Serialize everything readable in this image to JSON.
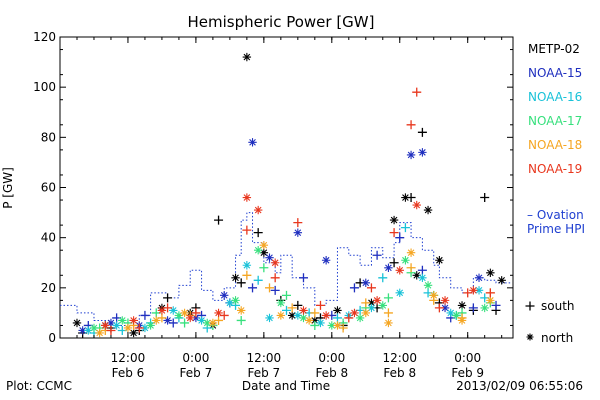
{
  "chart_data": {
    "type": "scatter",
    "title": "Hemispheric Power [GW]",
    "ylabel": "P [GW]",
    "xlabel": "Date and Time",
    "ylim": [
      0,
      120
    ],
    "xlim": [
      "2013-02-06T00:00",
      "2013-02-09T08:00"
    ],
    "yticks": [
      0,
      20,
      40,
      60,
      80,
      100,
      120
    ],
    "xticks": [
      {
        "at": "2013-02-06T12:00",
        "time": "12:00",
        "date": "Feb 6"
      },
      {
        "at": "2013-02-07T00:00",
        "time": "0:00",
        "date": "Feb 7"
      },
      {
        "at": "2013-02-07T12:00",
        "time": "12:00",
        "date": "Feb 7"
      },
      {
        "at": "2013-02-08T00:00",
        "time": "0:00",
        "date": "Feb 8"
      },
      {
        "at": "2013-02-08T12:00",
        "time": "12:00",
        "date": "Feb 8"
      },
      {
        "at": "2013-02-09T00:00",
        "time": "0:00",
        "date": "Feb 9"
      }
    ],
    "footer_left": "Plot: CCMC",
    "footer_right": "2013/02/09 06:55:06",
    "legend_placement": "right",
    "marker_legend": {
      "south": "south",
      "north": "north"
    },
    "series": [
      {
        "name": "METP-02",
        "color": "#000000",
        "south": [
          [
            "2013-02-06T04:00",
            2
          ],
          [
            "2013-02-06T09:00",
            4
          ],
          [
            "2013-02-06T14:00",
            3
          ],
          [
            "2013-02-06T19:00",
            16
          ],
          [
            "2013-02-07T00:00",
            12
          ],
          [
            "2013-02-07T04:00",
            47
          ],
          [
            "2013-02-07T08:00",
            22
          ],
          [
            "2013-02-07T11:00",
            42
          ],
          [
            "2013-02-07T15:00",
            15
          ],
          [
            "2013-02-07T18:00",
            13
          ],
          [
            "2013-02-07T22:00",
            8
          ],
          [
            "2013-02-08T02:00",
            5
          ],
          [
            "2013-02-08T05:00",
            22
          ],
          [
            "2013-02-08T08:00",
            12
          ],
          [
            "2013-02-08T11:00",
            30
          ],
          [
            "2013-02-08T14:00",
            56
          ],
          [
            "2013-02-08T16:00",
            82
          ],
          [
            "2013-02-08T19:00",
            14
          ],
          [
            "2013-02-09T01:00",
            11
          ],
          [
            "2013-02-09T03:00",
            56
          ],
          [
            "2013-02-09T05:00",
            11
          ]
        ],
        "north": [
          [
            "2013-02-06T03:00",
            6
          ],
          [
            "2013-02-06T08:00",
            5
          ],
          [
            "2013-02-06T13:00",
            2
          ],
          [
            "2013-02-06T18:00",
            12
          ],
          [
            "2013-02-06T23:00",
            10
          ],
          [
            "2013-02-07T03:00",
            5
          ],
          [
            "2013-02-07T07:00",
            24
          ],
          [
            "2013-02-07T09:00",
            112
          ],
          [
            "2013-02-07T12:00",
            34
          ],
          [
            "2013-02-07T17:00",
            9
          ],
          [
            "2013-02-07T21:00",
            7
          ],
          [
            "2013-02-08T01:00",
            11
          ],
          [
            "2013-02-08T07:00",
            14
          ],
          [
            "2013-02-08T11:00",
            47
          ],
          [
            "2013-02-08T13:00",
            56
          ],
          [
            "2013-02-08T15:00",
            25
          ],
          [
            "2013-02-08T17:00",
            51
          ],
          [
            "2013-02-08T19:00",
            31
          ],
          [
            "2013-02-08T23:00",
            13
          ],
          [
            "2013-02-09T04:00",
            26
          ],
          [
            "2013-02-09T06:00",
            23
          ]
        ]
      },
      {
        "name": "NOAA-15",
        "color": "#1f2fbf",
        "south": [
          [
            "2013-02-06T05:00",
            5
          ],
          [
            "2013-02-06T10:00",
            8
          ],
          [
            "2013-02-06T15:00",
            9
          ],
          [
            "2013-02-06T20:00",
            6
          ],
          [
            "2013-02-07T01:00",
            9
          ],
          [
            "2013-02-07T06:00",
            14
          ],
          [
            "2013-02-07T10:00",
            20
          ],
          [
            "2013-02-07T14:00",
            19
          ],
          [
            "2013-02-07T19:00",
            24
          ],
          [
            "2013-02-08T00:00",
            9
          ],
          [
            "2013-02-08T04:00",
            20
          ],
          [
            "2013-02-08T08:00",
            33
          ],
          [
            "2013-02-08T12:00",
            40
          ],
          [
            "2013-02-08T16:00",
            27
          ],
          [
            "2013-02-08T21:00",
            8
          ],
          [
            "2013-02-09T01:00",
            12
          ],
          [
            "2013-02-09T05:00",
            13
          ]
        ],
        "north": [
          [
            "2013-02-06T04:00",
            3
          ],
          [
            "2013-02-06T09:00",
            6
          ],
          [
            "2013-02-06T14:00",
            5
          ],
          [
            "2013-02-06T19:00",
            7
          ],
          [
            "2013-02-07T00:00",
            8
          ],
          [
            "2013-02-07T05:00",
            17
          ],
          [
            "2013-02-07T10:00",
            78
          ],
          [
            "2013-02-07T13:00",
            32
          ],
          [
            "2013-02-07T18:00",
            42
          ],
          [
            "2013-02-07T23:00",
            31
          ],
          [
            "2013-02-08T06:00",
            22
          ],
          [
            "2013-02-08T10:00",
            28
          ],
          [
            "2013-02-08T14:00",
            73
          ],
          [
            "2013-02-08T16:00",
            74
          ],
          [
            "2013-02-08T20:00",
            12
          ],
          [
            "2013-02-09T02:00",
            24
          ]
        ]
      },
      {
        "name": "NOAA-16",
        "color": "#19c2d8",
        "south": [
          [
            "2013-02-06T06:00",
            2
          ],
          [
            "2013-02-06T11:00",
            3
          ],
          [
            "2013-02-06T16:00",
            6
          ],
          [
            "2013-02-06T21:00",
            8
          ],
          [
            "2013-02-07T02:00",
            4
          ],
          [
            "2013-02-07T07:00",
            13
          ],
          [
            "2013-02-07T11:00",
            23
          ],
          [
            "2013-02-07T16:00",
            11
          ],
          [
            "2013-02-07T20:00",
            10
          ],
          [
            "2013-02-08T01:00",
            8
          ],
          [
            "2013-02-08T05:00",
            11
          ],
          [
            "2013-02-08T09:00",
            24
          ],
          [
            "2013-02-08T13:00",
            44
          ],
          [
            "2013-02-08T17:00",
            18
          ],
          [
            "2013-02-08T22:00",
            9
          ],
          [
            "2013-02-09T03:00",
            16
          ]
        ],
        "north": [
          [
            "2013-02-06T05:00",
            3
          ],
          [
            "2013-02-06T10:00",
            5
          ],
          [
            "2013-02-06T15:00",
            4
          ],
          [
            "2013-02-06T20:00",
            11
          ],
          [
            "2013-02-07T01:00",
            7
          ],
          [
            "2013-02-07T06:00",
            14
          ],
          [
            "2013-02-07T09:00",
            29
          ],
          [
            "2013-02-07T13:00",
            8
          ],
          [
            "2013-02-07T18:00",
            9
          ],
          [
            "2013-02-07T22:00",
            6
          ],
          [
            "2013-02-08T03:00",
            9
          ],
          [
            "2013-02-08T07:00",
            12
          ],
          [
            "2013-02-08T12:00",
            18
          ],
          [
            "2013-02-08T16:00",
            24
          ],
          [
            "2013-02-08T21:00",
            10
          ],
          [
            "2013-02-09T02:00",
            19
          ]
        ]
      },
      {
        "name": "NOAA-17",
        "color": "#37e07d",
        "south": [
          [
            "2013-02-06T07:00",
            4
          ],
          [
            "2013-02-06T12:00",
            6
          ],
          [
            "2013-02-06T17:00",
            10
          ],
          [
            "2013-02-06T22:00",
            6
          ],
          [
            "2013-02-07T03:00",
            5
          ],
          [
            "2013-02-07T08:00",
            7
          ],
          [
            "2013-02-07T12:00",
            28
          ],
          [
            "2013-02-07T16:00",
            17
          ],
          [
            "2013-02-07T21:00",
            5
          ],
          [
            "2013-02-08T02:00",
            6
          ],
          [
            "2013-02-08T06:00",
            12
          ],
          [
            "2013-02-08T10:00",
            16
          ],
          [
            "2013-02-08T14:00",
            26
          ],
          [
            "2013-02-08T18:00",
            17
          ],
          [
            "2013-02-08T23:00",
            10
          ],
          [
            "2013-02-09T04:00",
            14
          ]
        ],
        "north": [
          [
            "2013-02-06T06:00",
            4
          ],
          [
            "2013-02-06T11:00",
            7
          ],
          [
            "2013-02-06T16:00",
            5
          ],
          [
            "2013-02-06T21:00",
            9
          ],
          [
            "2013-02-07T02:00",
            6
          ],
          [
            "2013-02-07T07:00",
            15
          ],
          [
            "2013-02-07T11:00",
            35
          ],
          [
            "2013-02-07T15:00",
            14
          ],
          [
            "2013-02-07T19:00",
            8
          ],
          [
            "2013-02-08T00:00",
            5
          ],
          [
            "2013-02-08T05:00",
            8
          ],
          [
            "2013-02-08T09:00",
            13
          ],
          [
            "2013-02-08T13:00",
            31
          ],
          [
            "2013-02-08T17:00",
            21
          ],
          [
            "2013-02-08T22:00",
            9
          ],
          [
            "2013-02-09T03:00",
            12
          ]
        ]
      },
      {
        "name": "NOAA-18",
        "color": "#f5a623",
        "south": [
          [
            "2013-02-06T08:00",
            3
          ],
          [
            "2013-02-06T13:00",
            5
          ],
          [
            "2013-02-06T18:00",
            8
          ],
          [
            "2013-02-06T23:00",
            9
          ],
          [
            "2013-02-07T04:00",
            7
          ],
          [
            "2013-02-07T09:00",
            25
          ],
          [
            "2013-02-07T13:00",
            20
          ],
          [
            "2013-02-07T17:00",
            12
          ],
          [
            "2013-02-07T21:00",
            10
          ],
          [
            "2013-02-08T02:00",
            4
          ],
          [
            "2013-02-08T06:00",
            14
          ],
          [
            "2013-02-08T10:00",
            10
          ],
          [
            "2013-02-08T14:00",
            28
          ],
          [
            "2013-02-08T18:00",
            15
          ],
          [
            "2013-02-08T23:00",
            8
          ],
          [
            "2013-02-09T04:00",
            18
          ]
        ],
        "north": [
          [
            "2013-02-06T07:00",
            2
          ],
          [
            "2013-02-06T12:00",
            4
          ],
          [
            "2013-02-06T17:00",
            7
          ],
          [
            "2013-02-06T22:00",
            10
          ],
          [
            "2013-02-07T03:00",
            6
          ],
          [
            "2013-02-07T08:00",
            11
          ],
          [
            "2013-02-07T12:00",
            37
          ],
          [
            "2013-02-07T15:00",
            9
          ],
          [
            "2013-02-07T20:00",
            7
          ],
          [
            "2013-02-08T01:00",
            5
          ],
          [
            "2013-02-08T06:00",
            10
          ],
          [
            "2013-02-08T10:00",
            6
          ],
          [
            "2013-02-08T14:00",
            34
          ],
          [
            "2013-02-08T18:00",
            17
          ],
          [
            "2013-02-08T23:00",
            7
          ],
          [
            "2013-02-09T04:00",
            15
          ]
        ]
      },
      {
        "name": "NOAA-19",
        "color": "#e8371e",
        "south": [
          [
            "2013-02-06T09:00",
            3
          ],
          [
            "2013-02-06T14:00",
            4
          ],
          [
            "2013-02-06T19:00",
            12
          ],
          [
            "2013-02-07T00:00",
            10
          ],
          [
            "2013-02-07T05:00",
            9
          ],
          [
            "2013-02-07T09:00",
            43
          ],
          [
            "2013-02-07T14:00",
            24
          ],
          [
            "2013-02-07T18:00",
            46
          ],
          [
            "2013-02-07T22:00",
            13
          ],
          [
            "2013-02-08T03:00",
            8
          ],
          [
            "2013-02-08T07:00",
            20
          ],
          [
            "2013-02-08T11:00",
            42
          ],
          [
            "2013-02-08T14:00",
            85
          ],
          [
            "2013-02-08T15:00",
            98
          ],
          [
            "2013-02-08T19:00",
            12
          ],
          [
            "2013-02-09T00:00",
            18
          ],
          [
            "2013-02-09T04:00",
            18
          ]
        ],
        "north": [
          [
            "2013-02-06T08:00",
            5
          ],
          [
            "2013-02-06T13:00",
            7
          ],
          [
            "2013-02-06T18:00",
            11
          ],
          [
            "2013-02-06T23:00",
            8
          ],
          [
            "2013-02-07T04:00",
            10
          ],
          [
            "2013-02-07T09:00",
            56
          ],
          [
            "2013-02-07T11:00",
            51
          ],
          [
            "2013-02-07T14:00",
            30
          ],
          [
            "2013-02-07T19:00",
            11
          ],
          [
            "2013-02-07T23:00",
            9
          ],
          [
            "2013-02-08T04:00",
            10
          ],
          [
            "2013-02-08T08:00",
            15
          ],
          [
            "2013-02-08T12:00",
            27
          ],
          [
            "2013-02-08T15:00",
            53
          ],
          [
            "2013-02-08T20:00",
            15
          ],
          [
            "2013-02-09T01:00",
            19
          ]
        ]
      },
      {
        "name": "Ovation Prime HPI",
        "legend_lines": [
          "– Ovation",
          "Prime HPI"
        ],
        "type": "step",
        "color": "#1f3fd0",
        "points": [
          [
            "2013-02-06T00:00",
            13
          ],
          [
            "2013-02-06T03:00",
            10
          ],
          [
            "2013-02-06T06:00",
            7
          ],
          [
            "2013-02-06T09:00",
            5
          ],
          [
            "2013-02-06T12:00",
            7
          ],
          [
            "2013-02-06T14:00",
            9
          ],
          [
            "2013-02-06T16:00",
            18
          ],
          [
            "2013-02-06T19:00",
            16
          ],
          [
            "2013-02-06T21:00",
            21
          ],
          [
            "2013-02-06T23:00",
            27
          ],
          [
            "2013-02-07T01:00",
            19
          ],
          [
            "2013-02-07T03:00",
            15
          ],
          [
            "2013-02-07T05:00",
            20
          ],
          [
            "2013-02-07T07:00",
            33
          ],
          [
            "2013-02-07T08:00",
            47
          ],
          [
            "2013-02-07T09:00",
            50
          ],
          [
            "2013-02-07T10:00",
            38
          ],
          [
            "2013-02-07T12:00",
            30
          ],
          [
            "2013-02-07T14:00",
            26
          ],
          [
            "2013-02-07T15:00",
            33
          ],
          [
            "2013-02-07T17:00",
            24
          ],
          [
            "2013-02-07T19:00",
            20
          ],
          [
            "2013-02-07T21:00",
            13
          ],
          [
            "2013-02-07T23:00",
            15
          ],
          [
            "2013-02-08T01:00",
            36
          ],
          [
            "2013-02-08T03:00",
            33
          ],
          [
            "2013-02-08T05:00",
            29
          ],
          [
            "2013-02-08T07:00",
            36
          ],
          [
            "2013-02-08T09:00",
            32
          ],
          [
            "2013-02-08T11:00",
            38
          ],
          [
            "2013-02-08T12:00",
            46
          ],
          [
            "2013-02-08T14:00",
            40
          ],
          [
            "2013-02-08T16:00",
            35
          ],
          [
            "2013-02-08T18:00",
            29
          ],
          [
            "2013-02-08T19:00",
            24
          ],
          [
            "2013-02-08T21:00",
            20
          ],
          [
            "2013-02-08T23:00",
            18
          ],
          [
            "2013-02-09T01:00",
            24
          ],
          [
            "2013-02-09T03:00",
            23
          ],
          [
            "2013-02-09T05:00",
            22
          ],
          [
            "2013-02-09T06:00",
            22
          ]
        ]
      }
    ]
  }
}
